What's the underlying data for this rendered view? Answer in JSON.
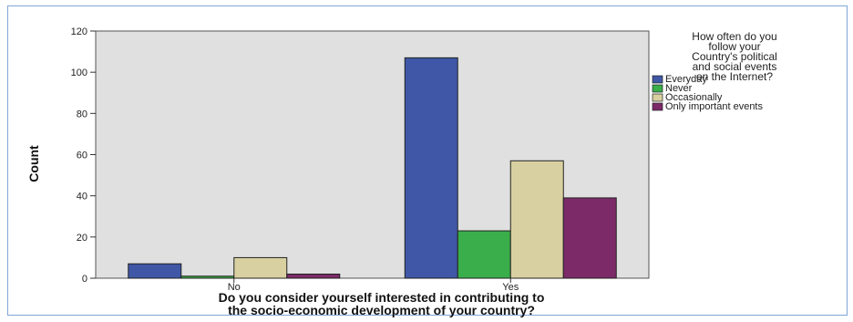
{
  "chart_data": {
    "type": "bar",
    "categories": [
      "No",
      "Yes"
    ],
    "series": [
      {
        "name": "Everyday",
        "values": [
          7,
          107
        ],
        "color": "#3f57a6"
      },
      {
        "name": "Never",
        "values": [
          1,
          23
        ],
        "color": "#3aae4a"
      },
      {
        "name": "Occasionally",
        "values": [
          10,
          57
        ],
        "color": "#d8d0a0"
      },
      {
        "name": "Only important events",
        "values": [
          2,
          39
        ],
        "color": "#7c2a68"
      }
    ],
    "ylabel": "Count",
    "xlabel_lines": [
      "Do you consider yourself interested in contributing to",
      "the socio-economic development of your country?"
    ],
    "legend_title_lines": [
      "How often do you",
      "follow your",
      "Country's political",
      "and social events",
      "on the Internet?"
    ],
    "ylim": [
      0,
      120
    ],
    "yticks": [
      0,
      20,
      40,
      60,
      80,
      100,
      120
    ],
    "plot_background": "#e0e0e0",
    "legend_position": "right"
  }
}
